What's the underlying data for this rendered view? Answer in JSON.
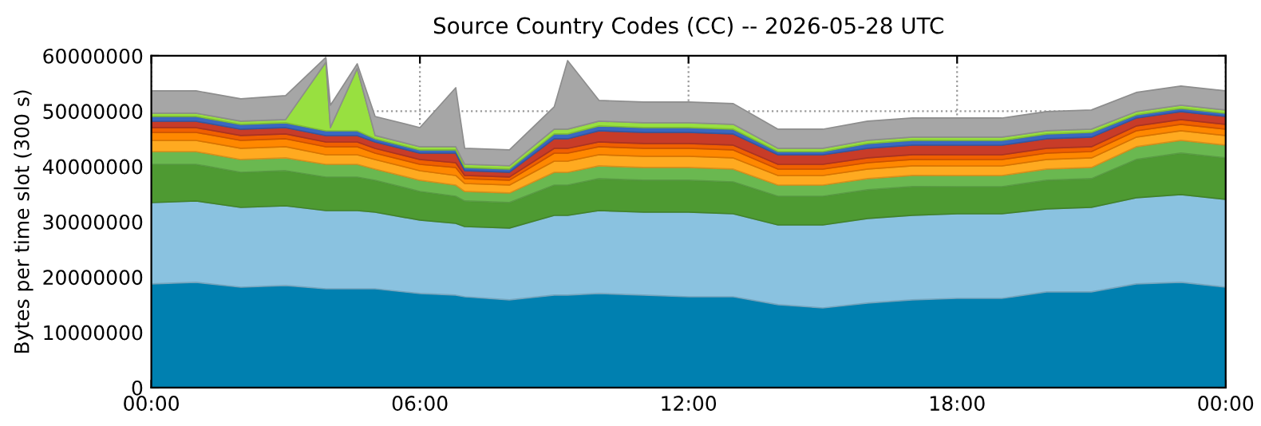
{
  "chart_data": {
    "type": "area",
    "stacked": true,
    "title": "Source Country Codes (CC) -- 2026-05-28 UTC",
    "ylabel": "Bytes per time slot (300 s)",
    "x": [
      0,
      1,
      2,
      3,
      3.9,
      4,
      4.6,
      5,
      6,
      6.8,
      7,
      8,
      9,
      9.3,
      10,
      11,
      12,
      13,
      14,
      15,
      16,
      17,
      18,
      19,
      20,
      21,
      22,
      23,
      24
    ],
    "xlim": [
      0,
      24
    ],
    "xticks": [
      {
        "value": 0,
        "label": "00:00"
      },
      {
        "value": 6,
        "label": "06:00"
      },
      {
        "value": 12,
        "label": "12:00"
      },
      {
        "value": 18,
        "label": "18:00"
      },
      {
        "value": 24,
        "label": "00:00"
      }
    ],
    "ylim": [
      0,
      60000000
    ],
    "yticks": [
      0,
      10000000,
      20000000,
      30000000,
      40000000,
      50000000,
      60000000
    ],
    "grid": true,
    "series": [
      {
        "color": "#0080b0",
        "values": [
          18750000,
          19040000,
          18170000,
          18460000,
          17880000,
          17880000,
          17880000,
          17880000,
          17020000,
          16730000,
          16440000,
          15870000,
          16730000,
          16730000,
          17020000,
          16730000,
          16440000,
          16440000,
          15000000,
          14420000,
          15290000,
          15870000,
          16150000,
          16150000,
          17310000,
          17310000,
          18750000,
          19040000,
          18170000
        ]
      },
      {
        "color": "#8ac2e0",
        "values": [
          14710000,
          14710000,
          14420000,
          14420000,
          14130000,
          14130000,
          14130000,
          13850000,
          13270000,
          12980000,
          12690000,
          12980000,
          14420000,
          14420000,
          15000000,
          15000000,
          15290000,
          15000000,
          14420000,
          15000000,
          15290000,
          15290000,
          15290000,
          15290000,
          15000000,
          15290000,
          15580000,
          15870000,
          15870000
        ]
      },
      {
        "color": "#4e9a32",
        "values": [
          6920000,
          6630000,
          6350000,
          6350000,
          6060000,
          6060000,
          6060000,
          5770000,
          5190000,
          4900000,
          4620000,
          4620000,
          5480000,
          5480000,
          5770000,
          5770000,
          5770000,
          5770000,
          5190000,
          5190000,
          5190000,
          5190000,
          4900000,
          4900000,
          5190000,
          5190000,
          6920000,
          7500000,
          7500000
        ]
      },
      {
        "color": "#6ab850",
        "values": [
          2310000,
          2310000,
          2310000,
          2310000,
          2310000,
          2310000,
          2310000,
          2020000,
          2020000,
          2020000,
          1730000,
          1730000,
          2310000,
          2310000,
          2310000,
          2310000,
          2310000,
          2310000,
          2020000,
          2020000,
          2020000,
          2020000,
          2020000,
          2020000,
          2020000,
          2020000,
          2310000,
          2310000,
          2310000
        ]
      },
      {
        "color": "#ffaa20",
        "values": [
          2020000,
          2020000,
          2020000,
          2020000,
          1730000,
          1730000,
          1730000,
          1730000,
          1730000,
          1730000,
          1440000,
          1440000,
          2020000,
          2020000,
          2020000,
          2020000,
          2020000,
          2020000,
          1730000,
          1730000,
          1730000,
          1730000,
          1730000,
          1730000,
          1730000,
          1730000,
          1730000,
          1730000,
          1730000
        ]
      },
      {
        "color": "#ff8800",
        "values": [
          1440000,
          1440000,
          1440000,
          1440000,
          1440000,
          1440000,
          1440000,
          1150000,
          1150000,
          1440000,
          870000,
          870000,
          1440000,
          1440000,
          1440000,
          1440000,
          1440000,
          1440000,
          1150000,
          1150000,
          1150000,
          1150000,
          1150000,
          1150000,
          1150000,
          1150000,
          1150000,
          1150000,
          1150000
        ]
      },
      {
        "color": "#f06000",
        "values": [
          870000,
          870000,
          870000,
          870000,
          870000,
          870000,
          870000,
          870000,
          870000,
          870000,
          580000,
          580000,
          870000,
          870000,
          870000,
          870000,
          870000,
          870000,
          870000,
          870000,
          870000,
          870000,
          870000,
          870000,
          870000,
          870000,
          870000,
          870000,
          870000
        ]
      },
      {
        "color": "#c83c28",
        "values": [
          1150000,
          1150000,
          1150000,
          1150000,
          1150000,
          1150000,
          1150000,
          1150000,
          1150000,
          1730000,
          870000,
          870000,
          1730000,
          1730000,
          2020000,
          2020000,
          2020000,
          2020000,
          1730000,
          1730000,
          1730000,
          1730000,
          1730000,
          1730000,
          1730000,
          1730000,
          1440000,
          1440000,
          1440000
        ]
      },
      {
        "color": "#3a68c0",
        "values": [
          870000,
          870000,
          870000,
          870000,
          870000,
          870000,
          870000,
          580000,
          580000,
          580000,
          580000,
          580000,
          870000,
          870000,
          870000,
          870000,
          870000,
          870000,
          580000,
          580000,
          870000,
          870000,
          870000,
          870000,
          870000,
          870000,
          580000,
          580000,
          580000
        ]
      },
      {
        "color": "#98e040",
        "values": [
          580000,
          580000,
          580000,
          580000,
          12400000,
          580000,
          11250000,
          580000,
          580000,
          580000,
          580000,
          580000,
          870000,
          870000,
          870000,
          870000,
          870000,
          870000,
          580000,
          580000,
          580000,
          580000,
          580000,
          580000,
          580000,
          580000,
          580000,
          580000,
          580000
        ]
      },
      {
        "color": "#a6a6a6",
        "values": [
          4040000,
          4040000,
          4040000,
          4330000,
          870000,
          4040000,
          870000,
          3460000,
          3460000,
          10670000,
          2880000,
          2880000,
          4040000,
          12400000,
          3750000,
          3750000,
          3750000,
          3750000,
          3460000,
          3460000,
          3460000,
          3460000,
          3460000,
          3460000,
          3460000,
          3460000,
          3460000,
          3460000,
          3460000
        ]
      }
    ]
  }
}
